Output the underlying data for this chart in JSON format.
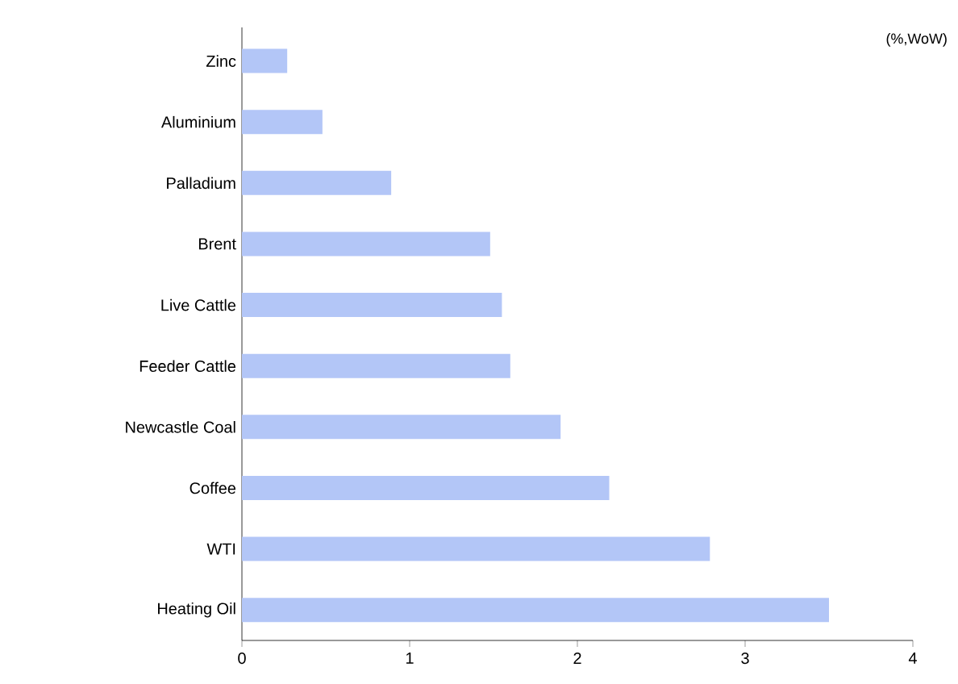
{
  "chart_data": {
    "type": "bar",
    "orientation": "horizontal",
    "categories": [
      "Zinc",
      "Aluminium",
      "Palladium",
      "Brent",
      "Live Cattle",
      "Feeder Cattle",
      "Newcastle Coal",
      "Coffee",
      "WTI",
      "Heating Oil"
    ],
    "values": [
      0.27,
      0.48,
      0.89,
      1.48,
      1.55,
      1.6,
      1.9,
      2.19,
      2.79,
      3.5
    ],
    "color": "#b3c6f7",
    "xlim": [
      0,
      4
    ],
    "xticks": [
      0,
      1,
      2,
      3,
      4
    ],
    "annotations": [
      "(%,WoW)"
    ]
  }
}
